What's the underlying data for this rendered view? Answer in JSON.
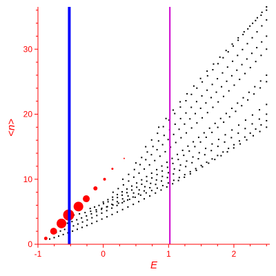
{
  "chart_data": {
    "type": "scatter",
    "title": "",
    "xlabel": "E",
    "ylabel": "<n>",
    "xlim": [
      -1.0,
      2.55
    ],
    "ylim": [
      0,
      36.5
    ],
    "x_ticks": [
      -1,
      0,
      1,
      2
    ],
    "y_ticks": [
      0,
      10,
      20,
      30
    ],
    "grid": false,
    "colors": {
      "axis": "#ff0000",
      "points": "#000000",
      "highlight": "#ff0000",
      "line_blue": "#0000ff",
      "line_magenta": "#cc00cc"
    },
    "vertical_lines": [
      {
        "x": -0.52,
        "color": "#0000ff"
      },
      {
        "x": 1.02,
        "color": "#cc00cc"
      }
    ],
    "highlight_points": [
      {
        "x": -0.88,
        "y": 0.9,
        "size": 2.5
      },
      {
        "x": -0.76,
        "y": 2.0,
        "size": 5
      },
      {
        "x": -0.64,
        "y": 3.2,
        "size": 7
      },
      {
        "x": -0.53,
        "y": 4.5,
        "size": 8
      },
      {
        "x": -0.38,
        "y": 5.8,
        "size": 7
      },
      {
        "x": -0.26,
        "y": 7.0,
        "size": 5
      },
      {
        "x": -0.12,
        "y": 8.6,
        "size": 3
      },
      {
        "x": 0.02,
        "y": 10.0,
        "size": 2
      },
      {
        "x": 0.14,
        "y": 11.6,
        "size": 1.5
      },
      {
        "x": 0.32,
        "y": 13.2,
        "size": 1
      }
    ],
    "bands": [
      {
        "x0": -0.82,
        "y0": 0.8,
        "x1": 0.5,
        "y1": 5.0,
        "x2": 2.5,
        "y2": 18.0,
        "n": 40
      },
      {
        "x0": -0.72,
        "y0": 1.8,
        "x1": 0.45,
        "y1": 6.0,
        "x2": 2.5,
        "y2": 20.0,
        "n": 38
      },
      {
        "x0": -0.62,
        "y0": 3.0,
        "x1": 0.6,
        "y1": 7.0,
        "x2": 2.5,
        "y2": 21.5,
        "n": 36
      },
      {
        "x0": -0.45,
        "y0": 4.5,
        "x1": 1.05,
        "y1": 7.5,
        "x2": 2.5,
        "y2": 19.0,
        "n": 36
      },
      {
        "x0": -0.2,
        "y0": 5.5,
        "x1": 0.9,
        "y1": 9.0,
        "x2": 2.5,
        "y2": 25.0,
        "n": 34
      },
      {
        "x0": 0.0,
        "y0": 6.5,
        "x1": 1.1,
        "y1": 12.0,
        "x2": 2.5,
        "y2": 26.0,
        "n": 32
      },
      {
        "x0": 0.15,
        "y0": 8.0,
        "x1": 1.3,
        "y1": 16.0,
        "x2": 2.5,
        "y2": 30.0,
        "n": 30
      },
      {
        "x0": 0.3,
        "y0": 10.0,
        "x1": 1.5,
        "y1": 20.0,
        "x2": 2.5,
        "y2": 32.0,
        "n": 28
      },
      {
        "x0": 0.5,
        "y0": 12.5,
        "x1": 1.6,
        "y1": 23.0,
        "x2": 2.5,
        "y2": 34.5,
        "n": 26
      },
      {
        "x0": 0.65,
        "y0": 15.0,
        "x1": 1.7,
        "y1": 27.0,
        "x2": 2.5,
        "y2": 36.5,
        "n": 24
      },
      {
        "x0": 0.85,
        "y0": 18.0,
        "x1": 1.8,
        "y1": 29.5,
        "x2": 2.5,
        "y2": 36.0,
        "n": 18
      }
    ]
  }
}
